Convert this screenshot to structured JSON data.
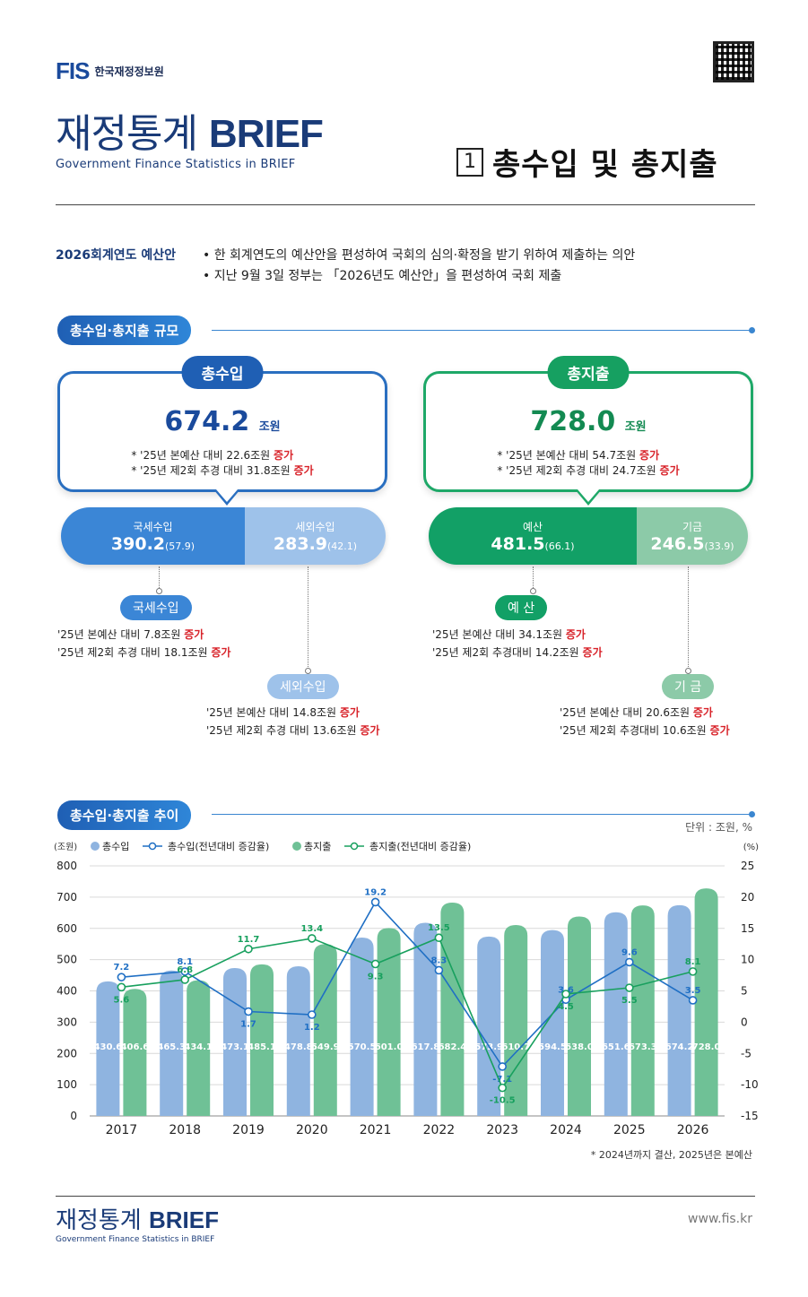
{
  "header": {
    "logo_mark": "FIS",
    "org_name": "한국재정정보원",
    "brand_title_kr": "재정통계",
    "brand_title_en": "BRIEF",
    "brand_subtitle": "Government Finance Statistics in BRIEF",
    "section_number": "1",
    "section_title": "총수입 및 총지출"
  },
  "intro": {
    "label": "2026회계연도 예산안",
    "bullets": [
      "• 한 회계연도의 예산안을 편성하여 국회의 심의·확정을 받기 위하여 제출하는 의안",
      "• 지난 9월 3일 정부는 「2026년도 예산안」을 편성하여 국회 제출"
    ]
  },
  "scale": {
    "pill": "총수입·총지출 규모",
    "revenue": {
      "tag": "총수입",
      "value": "674.2",
      "unit": "조원",
      "note1_text": "* '25년 본예산 대비 22.6조원 ",
      "note1_red": "증가",
      "note2_text": "* '25년 제2회 추경 대비 31.8조원 ",
      "note2_red": "증가",
      "left_label": "국세수입",
      "left_value": "390.2",
      "left_pct": "(57.9)",
      "right_label": "세외수입",
      "right_value": "283.9",
      "right_pct": "(42.1)",
      "sub1_pill": "국세수입",
      "sub1_line1": "'25년 본예산 대비 7.8조원 ",
      "sub1_line1_red": "증가",
      "sub1_line2": "'25년 제2회 추경 대비 18.1조원 ",
      "sub1_line2_red": "증가",
      "sub2_pill": "세외수입",
      "sub2_line1": "'25년 본예산 대비 14.8조원 ",
      "sub2_line1_red": "증가",
      "sub2_line2": "'25년 제2회 추경 대비 13.6조원 ",
      "sub2_line2_red": "증가"
    },
    "expenditure": {
      "tag": "총지출",
      "value": "728.0",
      "unit": "조원",
      "note1_text": "* '25년 본예산 대비 54.7조원 ",
      "note1_red": "증가",
      "note2_text": "* '25년 제2회 추경 대비 24.7조원 ",
      "note2_red": "증가",
      "left_label": "예산",
      "left_value": "481.5",
      "left_pct": "(66.1)",
      "right_label": "기금",
      "right_value": "246.5",
      "right_pct": "(33.9)",
      "sub1_pill": "예 산",
      "sub1_line1": "'25년 본예산 대비 34.1조원 ",
      "sub1_line1_red": "증가",
      "sub1_line2": "'25년 제2회 추경대비 14.2조원 ",
      "sub1_line2_red": "증가",
      "sub2_pill": "기 금",
      "sub2_line1": "'25년 본예산 대비 20.6조원 ",
      "sub2_line1_red": "증가",
      "sub2_line2": "'25년 제2회 추경대비 10.6조원 ",
      "sub2_line2_red": "증가"
    }
  },
  "trend": {
    "pill": "총수입·총지출 추이",
    "unit_note": "단위 : 조원, %",
    "footnote": "* 2024년까지 결산, 2025년은 본예산"
  },
  "chart_data": {
    "type": "bar",
    "categories": [
      "2017",
      "2018",
      "2019",
      "2020",
      "2021",
      "2022",
      "2023",
      "2024",
      "2025",
      "2026"
    ],
    "left_axis_label": "(조원)",
    "right_axis_label": "(%)",
    "ylim": [
      0,
      800
    ],
    "y_ticks": [
      0,
      100,
      200,
      300,
      400,
      500,
      600,
      700,
      800
    ],
    "y2lim": [
      -15,
      25
    ],
    "y2_ticks": [
      -15,
      -10,
      -5,
      0,
      5,
      10,
      15,
      20,
      25
    ],
    "series": [
      {
        "name": "총수입",
        "kind": "bar",
        "color": "#8fb4e0",
        "values": [
          430.6,
          465.3,
          473.1,
          478.8,
          570.5,
          617.8,
          573.9,
          594.5,
          651.6,
          674.2
        ]
      },
      {
        "name": "총지출",
        "kind": "bar",
        "color": "#6fc196",
        "values": [
          406.6,
          434.1,
          485.1,
          549.9,
          601.0,
          682.4,
          610.7,
          638.0,
          673.3,
          728.0
        ]
      },
      {
        "name": "총수입(전년대비 증감율)",
        "kind": "line",
        "color": "#1f6fc4",
        "values": [
          7.2,
          8.1,
          1.7,
          1.2,
          19.2,
          8.3,
          -7.1,
          3.6,
          9.6,
          3.5
        ]
      },
      {
        "name": "총지출(전년대비 증감율)",
        "kind": "line",
        "color": "#18a05e",
        "values": [
          5.6,
          6.8,
          11.7,
          13.4,
          9.3,
          13.5,
          -10.5,
          4.5,
          5.5,
          8.1
        ]
      }
    ]
  },
  "footer": {
    "title_kr": "재정통계",
    "title_en": "BRIEF",
    "subtitle": "Government Finance Statistics in BRIEF",
    "url": "www.fis.kr"
  }
}
